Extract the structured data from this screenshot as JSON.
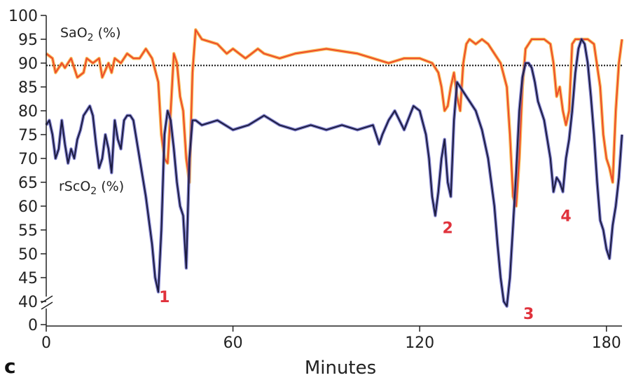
{
  "chart_data": {
    "type": "line",
    "panel_label": "c",
    "xlabel": "Minutes",
    "ylabel": "",
    "xlim": [
      0,
      185
    ],
    "ylim": [
      35,
      100
    ],
    "x_ticks": [
      "0",
      "60",
      "120",
      "180"
    ],
    "y_ticks": [
      "0",
      "40",
      "45",
      "50",
      "55",
      "60",
      "65",
      "70",
      "75",
      "80",
      "85",
      "90",
      "95",
      "100"
    ],
    "axis_break": true,
    "colors": {
      "sao2": "#ee4a2a",
      "sao2_glow": "#f5a623",
      "rsco2": "#1c1c40",
      "rsco2_glow": "#5b5bbf",
      "event": "#e0323c",
      "threshold": "#111111"
    },
    "threshold": {
      "value": 89.5,
      "style": "dotted"
    },
    "series": [
      {
        "name": "SaO2 (%)",
        "label_text": "SaO",
        "label_sub": "2",
        "label_suffix": " (%)",
        "x": [
          0,
          2,
          3,
          5,
          6,
          8,
          10,
          12,
          13,
          15,
          17,
          18,
          20,
          21,
          22,
          24,
          26,
          28,
          30,
          32,
          34,
          36,
          37,
          38,
          39,
          40,
          41,
          42,
          43,
          44,
          45,
          46,
          47,
          48,
          50,
          55,
          58,
          60,
          62,
          64,
          66,
          68,
          70,
          75,
          80,
          90,
          100,
          105,
          110,
          115,
          120,
          124,
          126,
          127,
          128,
          129,
          130,
          131,
          132,
          133,
          134,
          135,
          136,
          138,
          140,
          142,
          144,
          146,
          148,
          149,
          150,
          151,
          152,
          153,
          154,
          155,
          156,
          158,
          160,
          162,
          163,
          164,
          165,
          166,
          167,
          168,
          169,
          170,
          172,
          174,
          176,
          178,
          179,
          180,
          181,
          182,
          183,
          184,
          185
        ],
        "y": [
          92,
          91,
          88,
          90,
          89,
          91,
          87,
          88,
          91,
          90,
          91,
          87,
          90,
          88,
          91,
          90,
          92,
          91,
          91,
          93,
          91,
          86,
          75,
          70,
          69,
          80,
          92,
          90,
          83,
          80,
          70,
          65,
          88,
          97,
          95,
          94,
          92,
          93,
          92,
          91,
          92,
          93,
          92,
          91,
          92,
          93,
          92,
          91,
          90,
          91,
          91,
          90,
          88,
          85,
          80,
          81,
          85,
          88,
          83,
          80,
          90,
          94,
          95,
          94,
          95,
          94,
          92,
          90,
          85,
          75,
          62,
          60,
          70,
          85,
          93,
          94,
          95,
          95,
          95,
          94,
          90,
          83,
          85,
          80,
          77,
          80,
          94,
          95,
          95,
          95,
          94,
          85,
          75,
          70,
          68,
          65,
          80,
          90,
          95
        ]
      },
      {
        "name": "rScO2 (%)",
        "label_text": "rScO",
        "label_sub": "2",
        "label_suffix": " (%)",
        "x": [
          0,
          1,
          2,
          3,
          4,
          5,
          6,
          7,
          8,
          9,
          10,
          11,
          12,
          13,
          14,
          15,
          16,
          17,
          18,
          19,
          20,
          21,
          22,
          23,
          24,
          25,
          26,
          27,
          28,
          30,
          32,
          34,
          35,
          36,
          37,
          38,
          39,
          40,
          41,
          42,
          43,
          44,
          45,
          46,
          47,
          48,
          50,
          55,
          60,
          65,
          70,
          75,
          80,
          85,
          90,
          95,
          100,
          105,
          107,
          108,
          110,
          112,
          115,
          118,
          120,
          122,
          123,
          124,
          125,
          126,
          127,
          128,
          129,
          130,
          131,
          132,
          133,
          134,
          135,
          136,
          138,
          140,
          142,
          144,
          145,
          146,
          147,
          148,
          149,
          150,
          151,
          152,
          153,
          154,
          155,
          156,
          157,
          158,
          160,
          162,
          163,
          164,
          165,
          166,
          167,
          168,
          169,
          170,
          171,
          172,
          173,
          174,
          175,
          176,
          177,
          178,
          179,
          180,
          181,
          182,
          183,
          184,
          185
        ],
        "y": [
          77,
          78,
          75,
          70,
          72,
          78,
          73,
          69,
          72,
          70,
          74,
          76,
          79,
          80,
          81,
          79,
          73,
          68,
          70,
          75,
          72,
          67,
          78,
          74,
          72,
          78,
          79,
          79,
          78,
          70,
          62,
          52,
          45,
          42,
          55,
          75,
          80,
          78,
          72,
          65,
          60,
          58,
          47,
          70,
          78,
          78,
          77,
          78,
          76,
          77,
          79,
          77,
          76,
          77,
          76,
          77,
          76,
          77,
          73,
          75,
          78,
          80,
          76,
          81,
          80,
          75,
          70,
          62,
          58,
          63,
          70,
          74,
          65,
          62,
          78,
          86,
          85,
          84,
          83,
          82,
          80,
          76,
          70,
          60,
          52,
          45,
          40,
          39,
          45,
          56,
          67,
          80,
          87,
          90,
          90,
          89,
          86,
          82,
          78,
          70,
          63,
          66,
          65,
          63,
          70,
          74,
          80,
          88,
          93,
          95,
          94,
          90,
          83,
          75,
          65,
          57,
          55,
          51,
          49,
          56,
          60,
          66,
          75
        ]
      }
    ],
    "annotations": [
      {
        "text": "1",
        "x": 38,
        "y": 41
      },
      {
        "text": "2",
        "x": 129,
        "y": 55.5
      },
      {
        "text": "3",
        "x": 155,
        "y": 37.5
      },
      {
        "text": "4",
        "x": 167,
        "y": 58
      }
    ]
  }
}
